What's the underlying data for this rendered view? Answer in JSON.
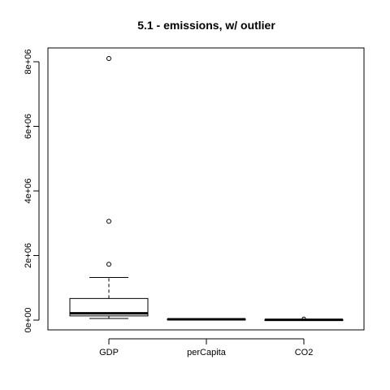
{
  "chart_data": {
    "type": "boxplot",
    "title": "5.1 - emissions, w/ outlier",
    "xlabel": "",
    "ylabel": "",
    "categories": [
      "GDP",
      "perCapita",
      "CO2"
    ],
    "ylim": [
      -350000,
      8400000
    ],
    "y_ticks": [
      0,
      2000000,
      4000000,
      6000000,
      8000000
    ],
    "y_tick_labels": [
      "0e+00",
      "2e+06",
      "4e+06",
      "6e+06",
      "8e+06"
    ],
    "grid": false,
    "legend": "none",
    "boxes": [
      {
        "name": "GDP",
        "whisker_low": 50000,
        "q1": 130000,
        "median": 210000,
        "q3": 670000,
        "whisker_high": 1320000,
        "outliers": [
          1730000,
          3060000,
          8100000
        ]
      },
      {
        "name": "perCapita",
        "whisker_low": 5000,
        "q1": 15000,
        "median": 25000,
        "q3": 35000,
        "whisker_high": 50000,
        "outliers": []
      },
      {
        "name": "CO2",
        "whisker_low": 0,
        "q1": 5000,
        "median": 10000,
        "q3": 15000,
        "whisker_high": 20000,
        "outliers": []
      }
    ]
  }
}
